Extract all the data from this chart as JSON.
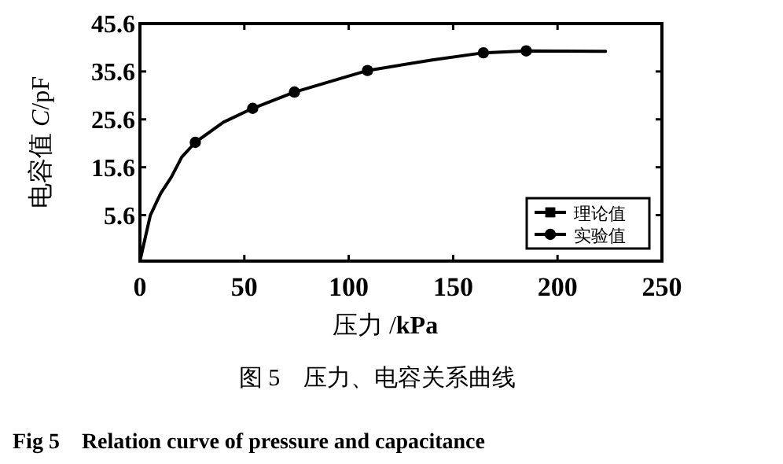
{
  "chart_data": {
    "type": "line",
    "xlabel": "压力 /**kPa**",
    "ylabel": "电容值 *C*/pF",
    "xlim": [
      0,
      250
    ],
    "xticks": [
      0,
      50,
      100,
      150,
      200,
      250
    ],
    "ylim": [
      -4,
      45.6
    ],
    "yticks": [
      5.6,
      15.6,
      25.6,
      35.6,
      45.6
    ],
    "series": [
      {
        "name": "理论值",
        "color": "#000000",
        "marker": "none",
        "x": [
          0,
          5,
          10,
          15,
          20,
          26.5,
          40,
          54,
          74,
          109,
          140,
          164.5,
          185,
          223
        ],
        "values": [
          -4,
          5.6,
          10.2,
          13.5,
          17.7,
          20.8,
          25,
          27.9,
          31.3,
          35.8,
          38,
          39.5,
          39.9,
          39.8
        ]
      },
      {
        "name": "实验值",
        "type": "scatter",
        "color": "#000000",
        "marker": "circle",
        "x": [
          26.5,
          54,
          74,
          109,
          164.5,
          185
        ],
        "values": [
          20.8,
          27.9,
          31.3,
          35.8,
          39.5,
          39.9
        ]
      }
    ],
    "legend": "bottom right",
    "grid": false,
    "annotations": [
      "图 5　压力、电容关系曲线",
      "Fig 5　Relation curve of pressure and capacitance"
    ]
  }
}
